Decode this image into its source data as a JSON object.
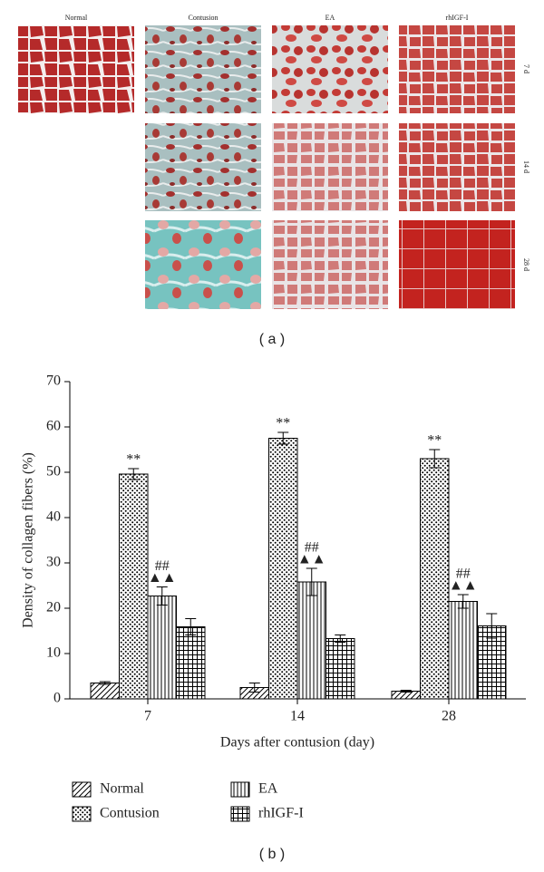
{
  "panel_a": {
    "columns": [
      "Normal",
      "Contusion",
      "EA",
      "rhIGF-I"
    ],
    "rows": [
      "7 d",
      "14 d",
      "28 d"
    ],
    "caption": "( a )"
  },
  "chart_data": {
    "type": "bar",
    "categories": [
      "7",
      "14",
      "28"
    ],
    "xlabel": "Days after contusion (day)",
    "ylabel": "Density of collagen fibers (%)",
    "ylim": [
      0,
      70
    ],
    "yticks": [
      0,
      10,
      20,
      30,
      40,
      50,
      60,
      70
    ],
    "grid": false,
    "legend": "bottom",
    "series": [
      {
        "name": "Normal",
        "color": "#000000",
        "hatch": "diagonal",
        "values": [
          3.5,
          2.5,
          1.7
        ],
        "errors": [
          0.3,
          1.0,
          0.2
        ]
      },
      {
        "name": "Contusion",
        "color": "#000000",
        "hatch": "dots",
        "values": [
          49.6,
          57.5,
          53.0
        ],
        "errors": [
          1.2,
          1.3,
          2.0
        ],
        "annotations": [
          "**"
        ]
      },
      {
        "name": "EA",
        "color": "#000000",
        "hatch": "vertical",
        "values": [
          22.7,
          25.8,
          21.5
        ],
        "errors": [
          2.0,
          3.0,
          1.5
        ],
        "annotations": [
          "##",
          "▲▲"
        ]
      },
      {
        "name": "rhIGF-I",
        "color": "#000000",
        "hatch": "grid",
        "values": [
          15.9,
          13.3,
          16.1
        ],
        "errors": [
          1.8,
          0.8,
          2.7
        ]
      }
    ],
    "caption": "( b )"
  }
}
